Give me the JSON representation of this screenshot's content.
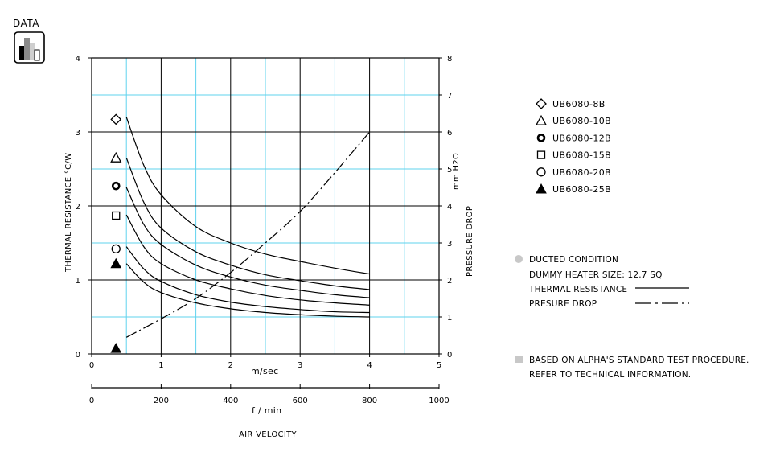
{
  "badge": {
    "label": "DATA",
    "icon": "bar-chart-icon"
  },
  "chart_data": {
    "type": "line",
    "x_axis": {
      "label": "m/sec",
      "range": [
        0,
        5
      ],
      "ticks": [
        0,
        1,
        2,
        3,
        4,
        5
      ]
    },
    "x2_axis": {
      "label": "f / min",
      "range": [
        0,
        1000
      ],
      "ticks": [
        0,
        200,
        400,
        600,
        800,
        1000
      ]
    },
    "x_title": "AIR VELOCITY",
    "y_left": {
      "label": "THERMAL RESISTANCE  °C/W",
      "range": [
        0,
        4
      ],
      "ticks": [
        0,
        1,
        2,
        3,
        4
      ]
    },
    "y_right": {
      "label": "PRESSURE DROP",
      "unit": "mm H2O",
      "range": [
        0,
        8
      ],
      "ticks": [
        0,
        1,
        2,
        3,
        4,
        5,
        6,
        7,
        8
      ]
    },
    "grid": true,
    "series": [
      {
        "name": "UB6080-8B",
        "marker": "diamond",
        "axis": "left",
        "x": [
          0.5,
          0.75,
          1.0,
          1.5,
          2.0,
          2.5,
          3.0,
          3.5,
          4.0
        ],
        "y": [
          3.2,
          2.55,
          2.15,
          1.72,
          1.5,
          1.35,
          1.25,
          1.16,
          1.08
        ]
      },
      {
        "name": "UB6080-10B",
        "marker": "triangle",
        "axis": "left",
        "x": [
          0.5,
          0.75,
          1.0,
          1.5,
          2.0,
          2.5,
          3.0,
          3.5,
          4.0
        ],
        "y": [
          2.65,
          2.05,
          1.7,
          1.38,
          1.2,
          1.07,
          0.99,
          0.92,
          0.87
        ]
      },
      {
        "name": "UB6080-12B",
        "marker": "circle-bold",
        "axis": "left",
        "x": [
          0.5,
          0.75,
          1.0,
          1.5,
          2.0,
          2.5,
          3.0,
          3.5,
          4.0
        ],
        "y": [
          2.25,
          1.75,
          1.48,
          1.2,
          1.04,
          0.93,
          0.86,
          0.8,
          0.76
        ]
      },
      {
        "name": "UB6080-15B",
        "marker": "square",
        "axis": "left",
        "x": [
          0.5,
          0.75,
          1.0,
          1.5,
          2.0,
          2.5,
          3.0,
          3.5,
          4.0
        ],
        "y": [
          1.88,
          1.45,
          1.22,
          1.0,
          0.88,
          0.79,
          0.73,
          0.69,
          0.66
        ]
      },
      {
        "name": "UB6080-20B",
        "marker": "circle",
        "axis": "left",
        "x": [
          0.5,
          0.75,
          1.0,
          1.5,
          2.0,
          2.5,
          3.0,
          3.5,
          4.0
        ],
        "y": [
          1.45,
          1.15,
          0.98,
          0.8,
          0.7,
          0.64,
          0.6,
          0.57,
          0.56
        ]
      },
      {
        "name": "UB6080-25B",
        "marker": "triangle-filled",
        "axis": "left",
        "x": [
          0.5,
          0.75,
          1.0,
          1.5,
          2.0,
          2.5,
          3.0,
          3.5,
          4.0
        ],
        "y": [
          1.22,
          0.97,
          0.83,
          0.69,
          0.61,
          0.56,
          0.53,
          0.51,
          0.5
        ]
      },
      {
        "name": "PRESURE DROP",
        "axis": "right",
        "line_style": "dash-dot",
        "marker": "triangle-filled",
        "x": [
          0.5,
          1.0,
          1.5,
          2.0,
          2.5,
          3.0,
          3.5,
          4.0
        ],
        "y": [
          0.45,
          0.95,
          1.5,
          2.2,
          3.0,
          3.85,
          4.9,
          6.0
        ]
      }
    ],
    "marker_column_x": 0.35,
    "marker_levels": [
      3.17,
      2.65,
      2.27,
      1.87,
      1.42,
      1.22
    ],
    "pressure_marker_level": 0.15
  },
  "legend": {
    "items": [
      {
        "label": "UB6080-8B",
        "marker": "diamond"
      },
      {
        "label": "UB6080-10B",
        "marker": "triangle"
      },
      {
        "label": "UB6080-12B",
        "marker": "circle-bold"
      },
      {
        "label": "UB6080-15B",
        "marker": "square"
      },
      {
        "label": "UB6080-20B",
        "marker": "circle"
      },
      {
        "label": "UB6080-25B",
        "marker": "triangle-filled"
      }
    ]
  },
  "notes": {
    "ducted_title": "DUCTED CONDITION",
    "heater_size": "DUMMY HEATER SIZE: 12.7 SQ",
    "thermal_resistance_label": "THERMAL RESISTANCE",
    "pressure_drop_label": "PRESURE DROP",
    "based_on_line1": "BASED ON ALPHA'S STANDARD TEST PROCEDURE.",
    "based_on_line2": "REFER TO TECHNICAL INFORMATION."
  },
  "colors": {
    "grid_major": "#000000",
    "grid_minor": "#5fd3ee",
    "note_bullet": "#c8c8c8"
  }
}
